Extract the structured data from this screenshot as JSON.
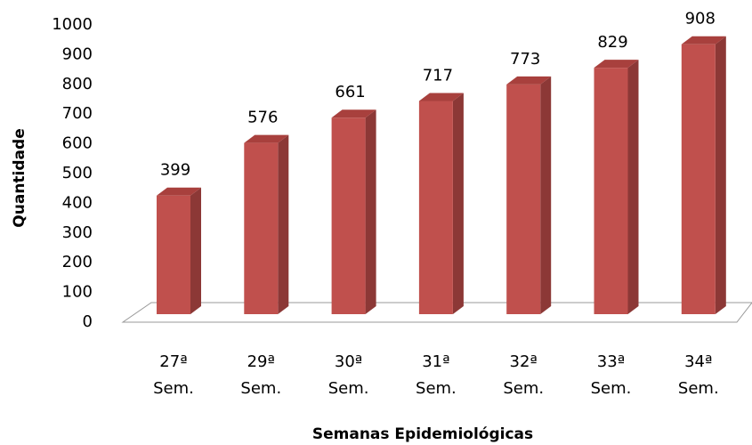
{
  "chart_data": {
    "type": "bar3d",
    "x_label": "Semanas Epidemiológicas",
    "y_label": "Quantidade",
    "categories": [
      "27ª Sem.",
      "29ª Sem.",
      "30ª Sem.",
      "31ª Sem.",
      "32ª Sem.",
      "33ª Sem.",
      "34ª Sem."
    ],
    "values": [
      399,
      576,
      661,
      717,
      773,
      829,
      908
    ],
    "color": "#c0504d",
    "ylim": [
      0,
      1000
    ],
    "yticks": [
      0,
      100,
      200,
      300,
      400,
      500,
      600,
      700,
      800,
      900,
      1000
    ]
  }
}
